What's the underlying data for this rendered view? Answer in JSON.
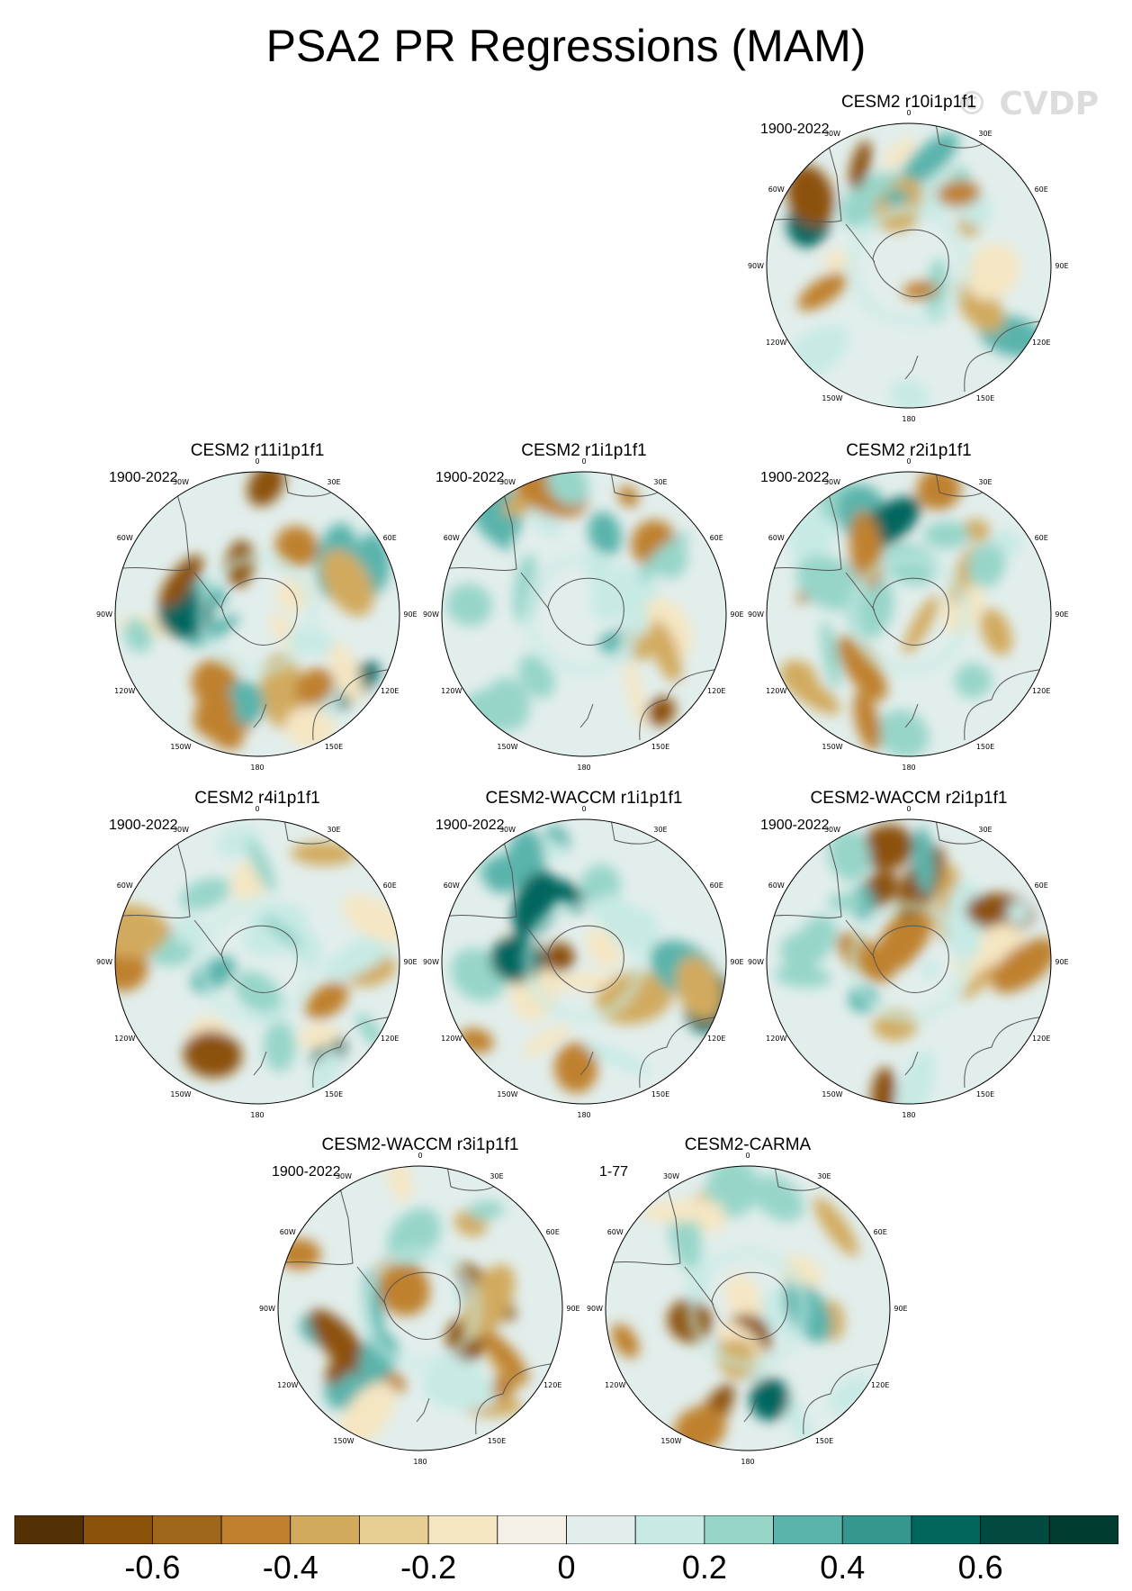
{
  "title": "PSA2 PR Regressions (MAM)",
  "watermark": "© CVDP",
  "colors": [
    "#543005",
    "#8c510a",
    "#a0661b",
    "#bf812d",
    "#d2aa5e",
    "#e7cf94",
    "#f5e6c3",
    "#f5f0e6",
    "#e2eeec",
    "#c7eae5",
    "#97d5c9",
    "#5ab4ac",
    "#35978f",
    "#01665e",
    "#02493f",
    "#003c30"
  ],
  "colorbar_labels": [
    "-0.6",
    "-0.4",
    "-0.2",
    "0",
    "0.2",
    "0.4",
    "0.6"
  ],
  "lon_labels": {
    "l0": "0",
    "l30e": "30E",
    "l60e": "60E",
    "l90e": "90E",
    "l120e": "120E",
    "l150e": "150E",
    "l180": "180",
    "l150w": "150W",
    "l120w": "120W",
    "l90w": "90W",
    "l60w": "60W",
    "l30w": "30W"
  },
  "panels": [
    {
      "title": "CESM2 r10i1p1f1",
      "period": "1900-2022",
      "seed": 11
    },
    {
      "title": "CESM2 r11i1p1f1",
      "period": "1900-2022",
      "seed": 23
    },
    {
      "title": "CESM2 r1i1p1f1",
      "period": "1900-2022",
      "seed": 37
    },
    {
      "title": "CESM2 r2i1p1f1",
      "period": "1900-2022",
      "seed": 41
    },
    {
      "title": "CESM2 r4i1p1f1",
      "period": "1900-2022",
      "seed": 53
    },
    {
      "title": "CESM2-WACCM r1i1p1f1",
      "period": "1900-2022",
      "seed": 67
    },
    {
      "title": "CESM2-WACCM r2i1p1f1",
      "period": "1900-2022",
      "seed": 71
    },
    {
      "title": "CESM2-WACCM r3i1p1f1",
      "period": "1900-2022",
      "seed": 83
    },
    {
      "title": "CESM2-CARMA",
      "period": "1-77",
      "seed": 97
    }
  ]
}
